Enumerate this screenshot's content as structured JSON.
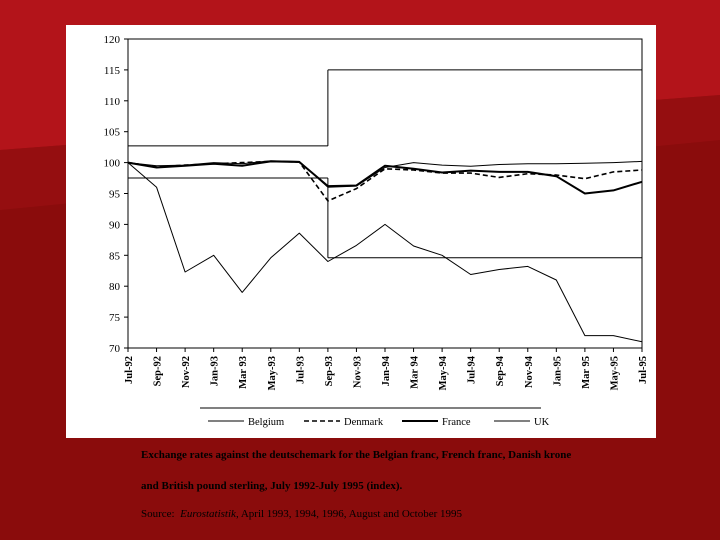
{
  "caption_line_1": "Exchange rates against the deutschemark for the Belgian franc, French franc, Danish krone",
  "caption_line_2": "and British pound sterling, July 1992-July 1995 (index).",
  "source": {
    "prefix": "Source:",
    "publication": "Eurostatistik",
    "suffix": ", April 1993, 1994, 1996, August and October 1995"
  },
  "colors": {
    "background_dark": "#8a0c0c",
    "background_light": "#b3141a",
    "panel": "#ffffff",
    "ink": "#000000"
  },
  "chart_data": {
    "type": "line",
    "title": "",
    "xlabel": "",
    "ylabel": "",
    "ylim": [
      70,
      120
    ],
    "yticks": [
      70,
      75,
      80,
      85,
      90,
      95,
      100,
      105,
      110,
      115,
      120
    ],
    "categories": [
      "Jul-92",
      "Sep-92",
      "Nov-92",
      "Jan-93",
      "Mar 93",
      "May-93",
      "Jul-93",
      "Sep-93",
      "Nov-93",
      "Jan-94",
      "Mar 94",
      "May-94",
      "Jul-94",
      "Sep-94",
      "Nov-94",
      "Jan-95",
      "Mar 95",
      "May-95",
      "Jul-95"
    ],
    "grid": false,
    "legend_position": "bottom",
    "series": [
      {
        "name": "Belgium",
        "style": "solid-thin",
        "values": [
          100,
          99.5,
          99.6,
          100,
          99.8,
          100.3,
          100.2,
          96,
          96.2,
          99.2,
          100,
          99.6,
          99.4,
          99.7,
          99.8,
          99.8,
          99.9,
          100,
          100.2
        ]
      },
      {
        "name": "Denmark",
        "style": "dashed",
        "values": [
          100,
          99.3,
          99.6,
          99.8,
          100,
          100.2,
          100.1,
          93.8,
          95.8,
          99,
          98.8,
          98.3,
          98.3,
          97.6,
          98.2,
          98,
          97.4,
          98.5,
          98.8
        ]
      },
      {
        "name": "France",
        "style": "solid-bold",
        "values": [
          100,
          99.2,
          99.5,
          99.8,
          99.5,
          100.2,
          100.1,
          96.2,
          96.3,
          99.5,
          99,
          98.4,
          98.7,
          98.5,
          98.5,
          97.8,
          95,
          95.5,
          96.9
        ]
      },
      {
        "name": "UK",
        "style": "solid-thin",
        "values": [
          100,
          96,
          82.3,
          85,
          79,
          84.6,
          88.6,
          84,
          86.6,
          90,
          86.5,
          85,
          81.9,
          82.7,
          83.2,
          81,
          72,
          72,
          71
        ]
      }
    ],
    "bands": [
      {
        "from_index": 0,
        "to_index": 7,
        "upper": 102.7,
        "lower": 97.5
      },
      {
        "from_index": 7,
        "to_index": 18,
        "upper": 115,
        "lower": 84.6
      }
    ]
  }
}
